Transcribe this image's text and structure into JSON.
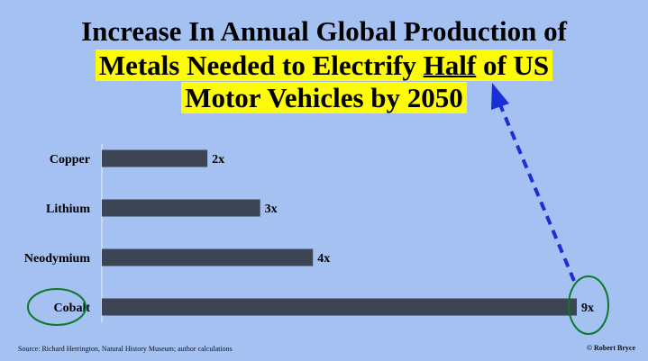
{
  "title": {
    "line1": "Increase In Annual Global Production of",
    "line2_pre": "Metals Needed to Electrify ",
    "line2_emph": "Half",
    "line2_post": " of US",
    "line3": "Motor Vehicles by 2050"
  },
  "chart_data": {
    "type": "bar",
    "orientation": "horizontal",
    "title": "Increase In Annual Global Production of Metals Needed to Electrify Half of US Motor Vehicles by 2050",
    "categories": [
      "Copper",
      "Lithium",
      "Neodymium",
      "Cobalt"
    ],
    "values": [
      2,
      3,
      4,
      9
    ],
    "value_labels": [
      "2x",
      "3x",
      "4x",
      "9x"
    ],
    "xlim": [
      0,
      9
    ],
    "xlabel": "",
    "ylabel": "",
    "grid": false,
    "highlighted_category": "Cobalt",
    "bar_color": "#3d4454",
    "annotation": "dashed arrow from Cobalt 9x label to the word Half in the title",
    "annotation_color": "#1a2fd6",
    "circle_color": "#0b7a2a"
  },
  "footer": {
    "source": "Source: Richard Herrington, Natural History Museum; author calculations",
    "credit": "© Robert Bryce"
  },
  "colors": {
    "background": "#a4c1f2",
    "highlight": "#fdfa0a"
  }
}
